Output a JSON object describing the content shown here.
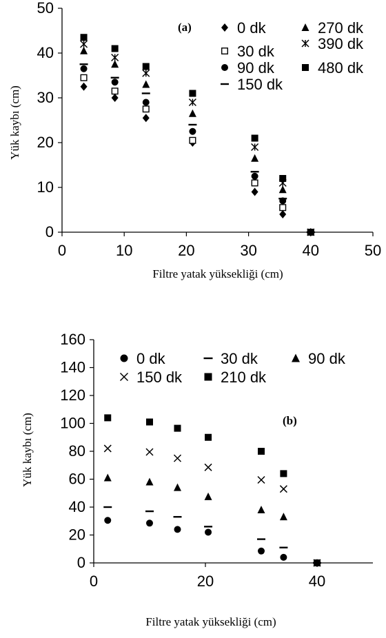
{
  "chart_data": [
    {
      "type": "scatter",
      "panel_label": "(a)",
      "xlabel": "Filtre yatak yüksekliği (cm)",
      "ylabel": "Yük kaybı (cm)",
      "xlim": [
        0,
        50
      ],
      "ylim": [
        0,
        50
      ],
      "xticks": [
        0,
        10,
        20,
        30,
        40,
        50
      ],
      "yticks": [
        0,
        10,
        20,
        30,
        40,
        50
      ],
      "grid": false,
      "legend_position": "top-right",
      "x": [
        3.5,
        8.5,
        13.5,
        21,
        31,
        35.5,
        40
      ],
      "series": [
        {
          "name": "0 dk",
          "marker": "diamond",
          "values": [
            32.5,
            30,
            25.5,
            20,
            9,
            4,
            0
          ]
        },
        {
          "name": "30 dk",
          "marker": "square-open",
          "values": [
            34.5,
            31.5,
            27.5,
            20.5,
            11,
            5.5,
            0
          ]
        },
        {
          "name": "90 dk",
          "marker": "circle",
          "values": [
            36.5,
            33.5,
            29,
            22.5,
            12.5,
            7,
            0
          ]
        },
        {
          "name": "150 dk",
          "marker": "dash",
          "values": [
            37.5,
            34.5,
            31,
            24,
            13.5,
            7.5,
            0
          ]
        },
        {
          "name": "270 dk",
          "marker": "triangle",
          "values": [
            40.5,
            37.5,
            33,
            26.5,
            16.5,
            9.5,
            0
          ]
        },
        {
          "name": "390 dk",
          "marker": "asterisk",
          "values": [
            42,
            39,
            35.5,
            29,
            19,
            11,
            0
          ]
        },
        {
          "name": "480 dk",
          "marker": "square",
          "values": [
            43.5,
            41,
            37,
            31,
            21,
            12,
            0
          ]
        }
      ]
    },
    {
      "type": "scatter",
      "panel_label": "(b)",
      "xlabel": "Filtre yatak yüksekliği (cm)",
      "ylabel": "Yük kaybı (cm)",
      "xlim": [
        0,
        50
      ],
      "ylim": [
        0,
        160
      ],
      "xticks": [
        0,
        20,
        40
      ],
      "yticks": [
        0,
        20,
        40,
        60,
        80,
        100,
        120,
        140,
        160
      ],
      "grid": false,
      "legend_position": "top",
      "x": [
        2.5,
        10,
        15,
        20.5,
        30,
        34,
        40
      ],
      "series": [
        {
          "name": "0 dk",
          "marker": "circle",
          "values": [
            30.5,
            28.5,
            24,
            22,
            8.5,
            4,
            0
          ]
        },
        {
          "name": "30 dk",
          "marker": "dash",
          "values": [
            40,
            37,
            33,
            26,
            17,
            11,
            0
          ]
        },
        {
          "name": "90 dk",
          "marker": "triangle",
          "values": [
            61,
            58,
            54,
            47.5,
            38,
            33,
            0
          ]
        },
        {
          "name": "150 dk",
          "marker": "cross",
          "values": [
            82,
            79.5,
            75,
            68.5,
            59.5,
            53,
            0
          ]
        },
        {
          "name": "210 dk",
          "marker": "square",
          "values": [
            104,
            101,
            96.5,
            90,
            80,
            64,
            0
          ]
        }
      ]
    }
  ]
}
